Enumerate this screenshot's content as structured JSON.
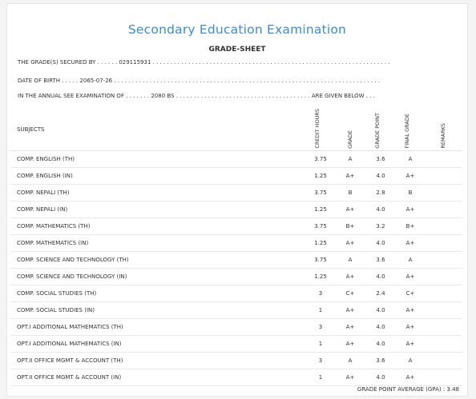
{
  "title": "Secondary Education Examination",
  "subtitle": "GRADE-SHEET",
  "info": {
    "grades_line": "THE GRADE(S) SECURED BY . . . . . . 029115931 . . . . . . . . . . . . . . . . . . . . . . . . . . . . . . . . . . . . . . . . . . . . . . . . . . . . . . . . . . . . . . . . . . .",
    "dob_line": "DATE OF BIRTH . . . . . 2065-07-26 . . . . . . . . . . . . . . . . . . . . . . . . . . . . . . . . . . . . . . . . . . . . . . . . . . . . . . . . . . . . . . . . . . . . . . . . . . .",
    "exam_line": "IN THE ANNUAL SEE EXAMINATION OF . . . . . . . 2080 BS . . . . . . . . . . . . . . . . . . . . . . . . . . . . . . . . . . . . . . ARE GIVEN BELOW . . ."
  },
  "table": {
    "headers": {
      "subjects": "SUBJECTS",
      "credit_hours": "CREDIT HOURS",
      "grade": "GRADE",
      "grade_point": "GRADE POINT",
      "final_grade": "FINAL GRADE",
      "remarks": "REMARKS"
    },
    "rows": [
      {
        "subject": "COMP. ENGLISH (TH)",
        "credit": "3.75",
        "grade": "A",
        "gp": "3.6",
        "final": "A",
        "remarks": ""
      },
      {
        "subject": "COMP. ENGLISH (IN)",
        "credit": "1.25",
        "grade": "A+",
        "gp": "4.0",
        "final": "A+",
        "remarks": ""
      },
      {
        "subject": "COMP. NEPALI (TH)",
        "credit": "3.75",
        "grade": "B",
        "gp": "2.8",
        "final": "B",
        "remarks": ""
      },
      {
        "subject": "COMP. NEPALI (IN)",
        "credit": "1.25",
        "grade": "A+",
        "gp": "4.0",
        "final": "A+",
        "remarks": ""
      },
      {
        "subject": "COMP. MATHEMATICS (TH)",
        "credit": "3.75",
        "grade": "B+",
        "gp": "3.2",
        "final": "B+",
        "remarks": ""
      },
      {
        "subject": "COMP. MATHEMATICS (IN)",
        "credit": "1.25",
        "grade": "A+",
        "gp": "4.0",
        "final": "A+",
        "remarks": ""
      },
      {
        "subject": "COMP. SCIENCE AND TECHNOLOGY (TH)",
        "credit": "3.75",
        "grade": "A",
        "gp": "3.6",
        "final": "A",
        "remarks": ""
      },
      {
        "subject": "COMP. SCIENCE AND TECHNOLOGY (IN)",
        "credit": "1.25",
        "grade": "A+",
        "gp": "4.0",
        "final": "A+",
        "remarks": ""
      },
      {
        "subject": "COMP. SOCIAL STUDIES (TH)",
        "credit": "3",
        "grade": "C+",
        "gp": "2.4",
        "final": "C+",
        "remarks": ""
      },
      {
        "subject": "COMP. SOCIAL STUDIES (IN)",
        "credit": "1",
        "grade": "A+",
        "gp": "4.0",
        "final": "A+",
        "remarks": ""
      },
      {
        "subject": "OPT.I ADDITIONAL MATHEMATICS (TH)",
        "credit": "3",
        "grade": "A+",
        "gp": "4.0",
        "final": "A+",
        "remarks": ""
      },
      {
        "subject": "OPT.I ADDITIONAL MATHEMATICS (IN)",
        "credit": "1",
        "grade": "A+",
        "gp": "4.0",
        "final": "A+",
        "remarks": ""
      },
      {
        "subject": "OPT.II OFFICE MGMT & ACCOUNT (TH)",
        "credit": "3",
        "grade": "A",
        "gp": "3.6",
        "final": "A",
        "remarks": ""
      },
      {
        "subject": "OPT.II OFFICE MGMT & ACCOUNT (IN)",
        "credit": "1",
        "grade": "A+",
        "gp": "4.0",
        "final": "A+",
        "remarks": ""
      }
    ]
  },
  "gpa_text": "GRADE POINT AVERAGE (GPA) : 3.48",
  "colors": {
    "title": "#3a8dd6"
  }
}
